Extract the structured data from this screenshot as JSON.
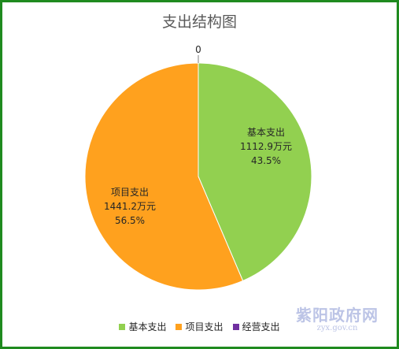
{
  "chart_data": {
    "type": "pie",
    "title": "支出结构图",
    "slices": [
      {
        "name": "基本支出",
        "value": 1112.9,
        "value_label": "1112.9万元",
        "percent_label": "43.5%",
        "color": "#92d050"
      },
      {
        "name": "项目支出",
        "value": 1441.2,
        "value_label": "1441.2万元",
        "percent_label": "56.5%",
        "color": "#ffa11e"
      },
      {
        "name": "经营支出",
        "value": 0,
        "value_label": "0",
        "percent_label": "",
        "color": "#7030a0"
      }
    ],
    "legend_position": "bottom"
  },
  "watermark": {
    "main": "紫阳政府网",
    "sub": "zyx.gov.cn"
  },
  "frame_color": "#1f8a1f"
}
